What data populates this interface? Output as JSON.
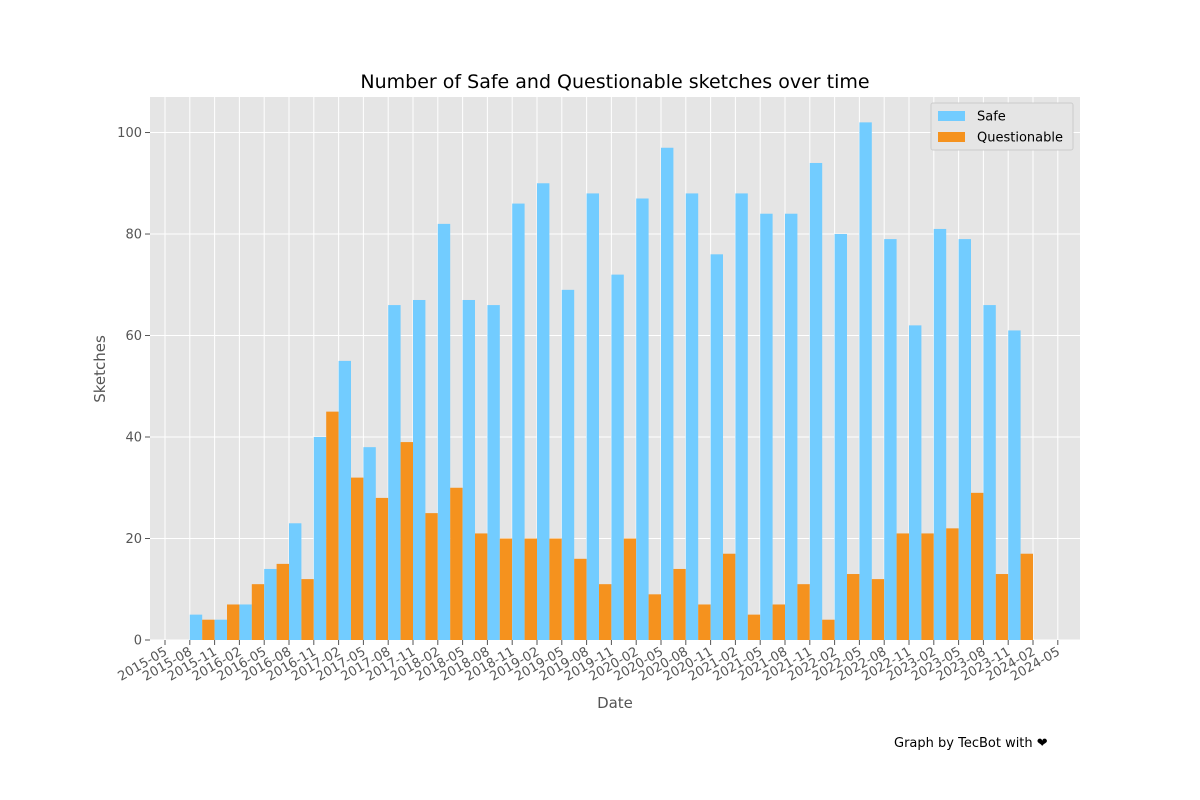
{
  "credit": "Graph by TecBot with ❤",
  "chart_data": {
    "type": "bar",
    "title": "Number of Safe and Questionable sketches over time",
    "xlabel": "Date",
    "ylabel": "Sketches",
    "ylim": [
      0,
      107
    ],
    "yticks": [
      0,
      20,
      40,
      60,
      80,
      100
    ],
    "grid": true,
    "legend_position": "top-right",
    "colors": {
      "Safe": "#72CCFF",
      "Questionable": "#F5921E",
      "background": "#E5E5E5",
      "grid": "#FFFFFF"
    },
    "xticks": [
      "2015-05",
      "2015-08",
      "2015-11",
      "2016-02",
      "2016-05",
      "2016-08",
      "2016-11",
      "2017-02",
      "2017-05",
      "2017-08",
      "2017-11",
      "2018-02",
      "2018-05",
      "2018-08",
      "2018-11",
      "2019-02",
      "2019-05",
      "2019-08",
      "2019-11",
      "2020-02",
      "2020-05",
      "2020-08",
      "2020-11",
      "2021-02",
      "2021-05",
      "2021-08",
      "2021-11",
      "2022-02",
      "2022-05",
      "2022-08",
      "2022-11",
      "2023-02",
      "2023-05",
      "2023-08",
      "2023-11",
      "2024-02",
      "2024-05"
    ],
    "categories": [
      "2015-08",
      "2015-11",
      "2016-02",
      "2016-05",
      "2016-08",
      "2016-11",
      "2017-02",
      "2017-05",
      "2017-08",
      "2017-11",
      "2018-02",
      "2018-05",
      "2018-08",
      "2018-11",
      "2019-02",
      "2019-05",
      "2019-08",
      "2019-11",
      "2020-02",
      "2020-05",
      "2020-08",
      "2020-11",
      "2021-02",
      "2021-05",
      "2021-08",
      "2021-11",
      "2022-02",
      "2022-05",
      "2022-08",
      "2022-11",
      "2023-02",
      "2023-05",
      "2023-08",
      "2023-11",
      "2024-02"
    ],
    "series": [
      {
        "name": "Safe",
        "values": [
          5,
          4,
          7,
          14,
          23,
          40,
          55,
          38,
          66,
          67,
          82,
          67,
          66,
          86,
          90,
          69,
          88,
          72,
          87,
          97,
          88,
          76,
          88,
          84,
          84,
          94,
          80,
          102,
          79,
          62,
          81,
          79,
          66,
          61,
          0
        ]
      },
      {
        "name": "Questionable",
        "values": [
          4,
          7,
          11,
          15,
          12,
          45,
          32,
          28,
          39,
          25,
          30,
          21,
          20,
          20,
          20,
          16,
          11,
          20,
          9,
          14,
          7,
          17,
          5,
          7,
          11,
          4,
          13,
          12,
          21,
          21,
          22,
          29,
          13,
          17,
          0
        ]
      }
    ]
  }
}
